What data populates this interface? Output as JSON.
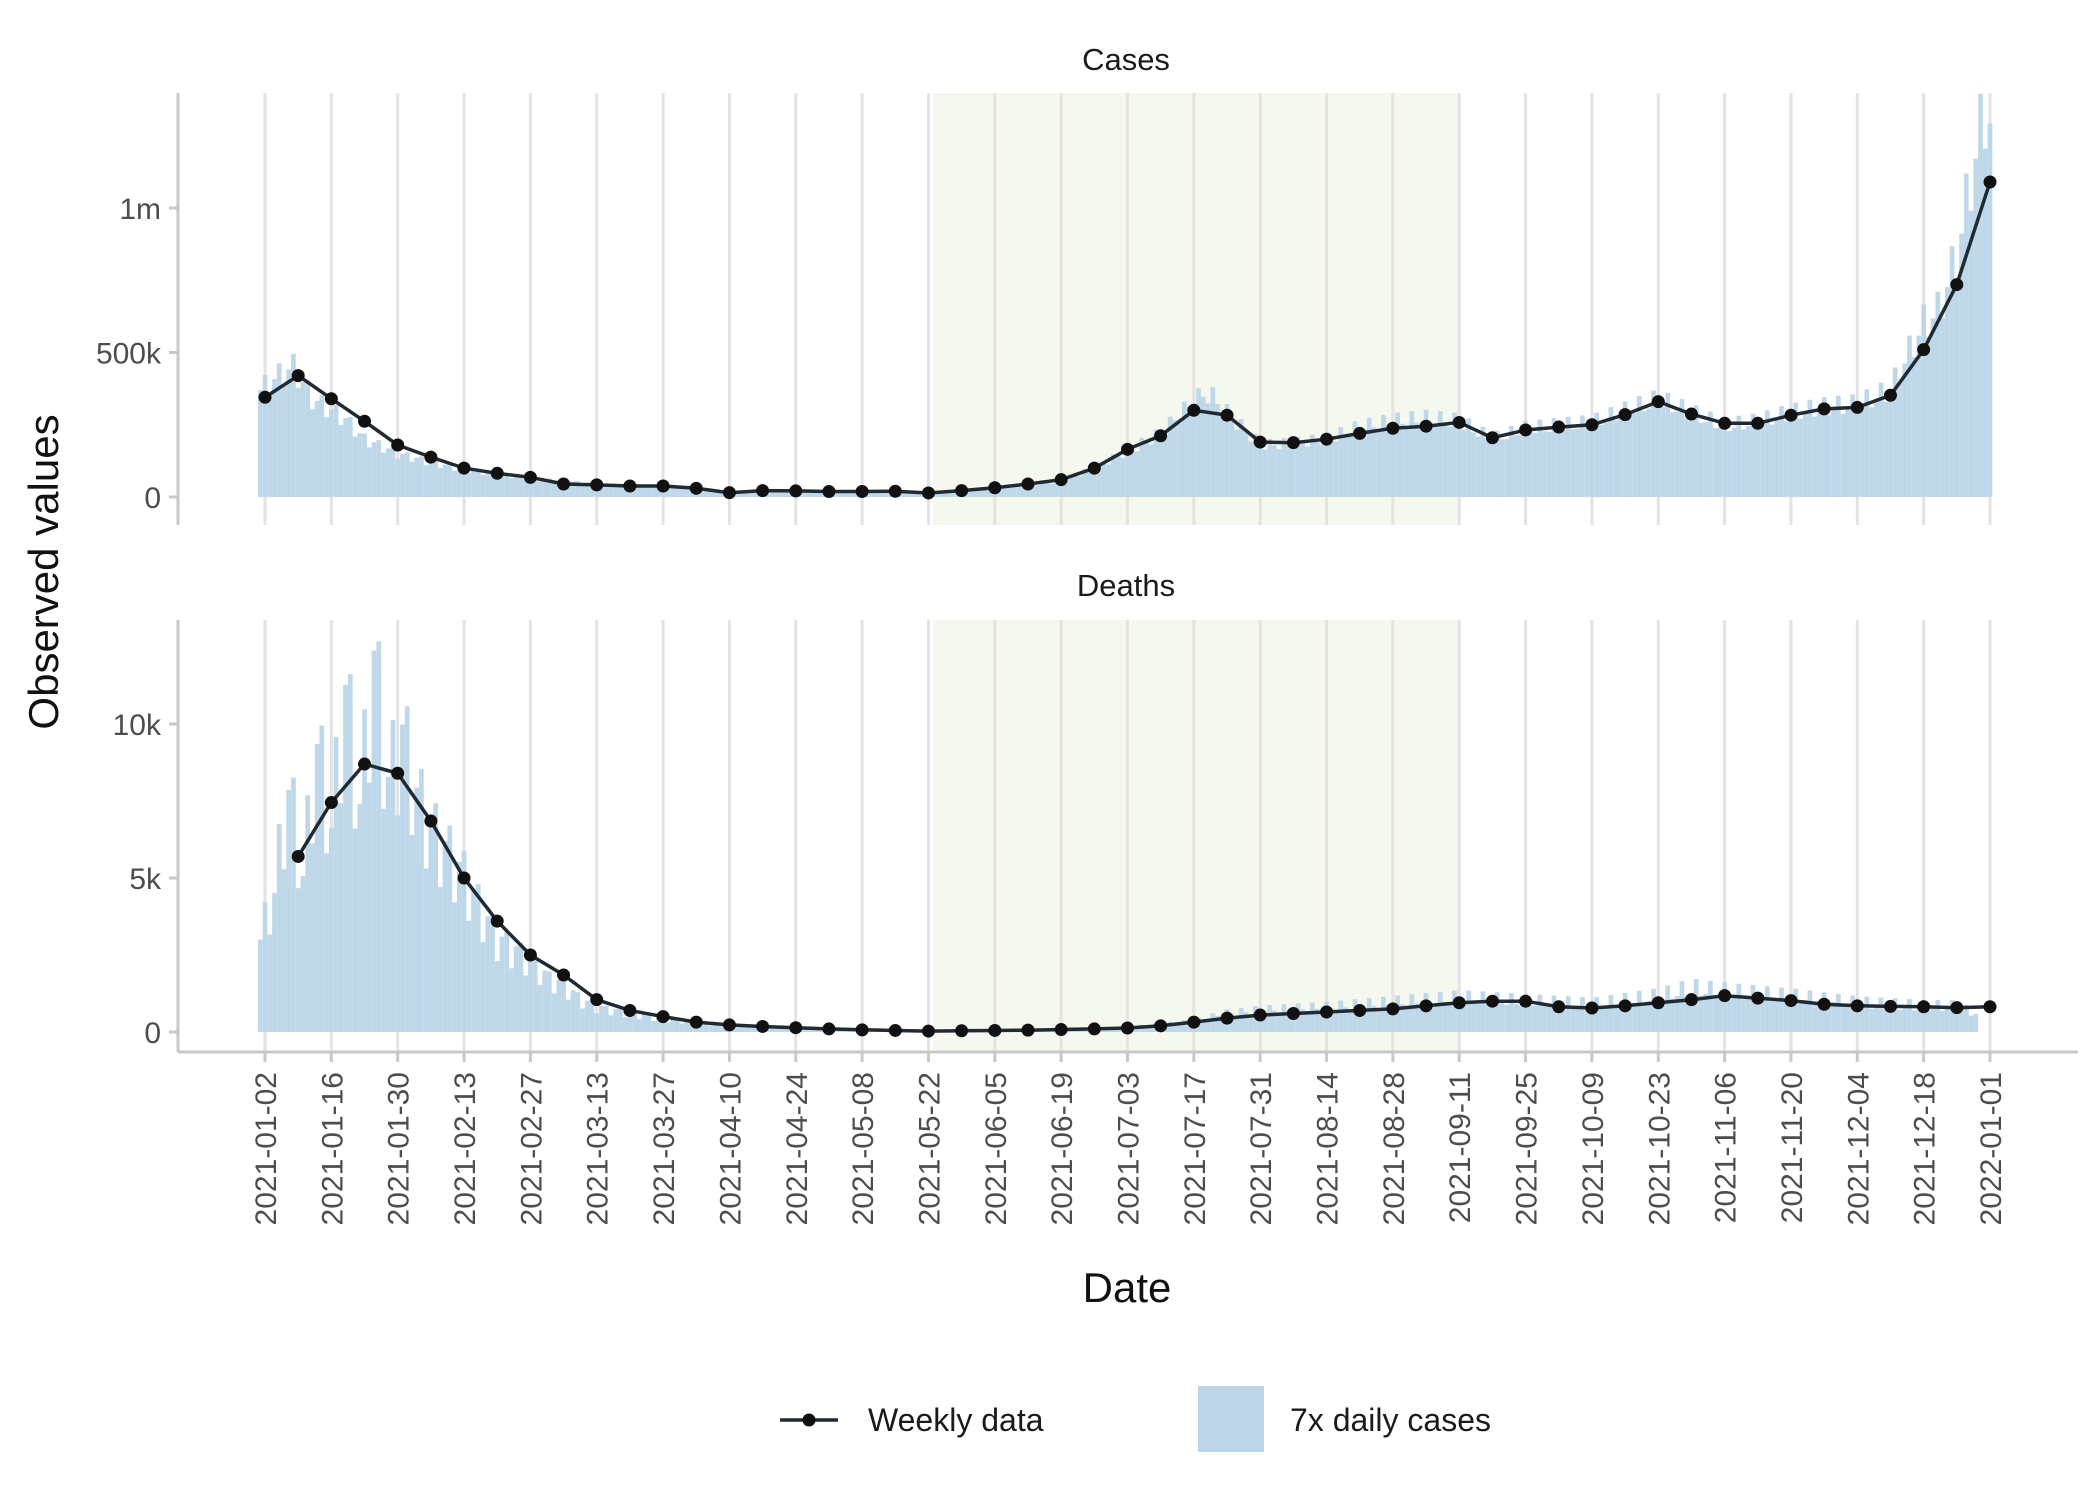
{
  "chart_data": {
    "type": "line",
    "x_axis": {
      "label": "Date",
      "ticks": [
        "2021-01-02",
        "2021-01-16",
        "2021-01-30",
        "2021-02-13",
        "2021-02-27",
        "2021-03-13",
        "2021-03-27",
        "2021-04-10",
        "2021-04-24",
        "2021-05-08",
        "2021-05-22",
        "2021-06-05",
        "2021-06-19",
        "2021-07-03",
        "2021-07-17",
        "2021-07-31",
        "2021-08-14",
        "2021-08-28",
        "2021-09-11",
        "2021-09-25",
        "2021-10-09",
        "2021-10-23",
        "2021-11-06",
        "2021-11-20",
        "2021-12-04",
        "2021-12-18",
        "2022-01-01"
      ]
    },
    "y_axis_label": "Observed values",
    "shaded_period": {
      "start": "2021-05-23",
      "end": "2021-09-11",
      "color": "#f5f8ee"
    },
    "colors": {
      "weekly": "#1f2a33",
      "daily": "#bcd6e8",
      "grid": "#e3e3e3",
      "axis": "#c8c8c8"
    },
    "legend": {
      "position": "bottom",
      "items": [
        {
          "label": "Weekly data",
          "kind": "line-point"
        },
        {
          "label": "7x daily cases",
          "kind": "bar"
        }
      ]
    },
    "panels": [
      {
        "title": "Cases",
        "ylim": [
          0,
          1350000
        ],
        "yticks": [
          {
            "value": 0,
            "label": "0"
          },
          {
            "value": 500000,
            "label": "500k"
          },
          {
            "value": 1000000,
            "label": "1m"
          }
        ],
        "weekly": {
          "start": "2021-01-02",
          "values": [
            345000,
            420000,
            340000,
            262000,
            180000,
            138000,
            100000,
            82000,
            68000,
            45000,
            42000,
            38000,
            38000,
            30000,
            15000,
            22000,
            21000,
            19000,
            19000,
            20000,
            14000,
            22000,
            32000,
            45000,
            60000,
            100000,
            165000,
            212000,
            300000,
            283000,
            190000,
            188000,
            200000,
            220000,
            238000,
            245000,
            258000,
            205000,
            232000,
            242000,
            250000,
            285000,
            330000,
            287000,
            255000,
            255000,
            283000,
            305000,
            310000,
            352000,
            510000,
            735000,
            1090000
          ]
        },
        "daily_anchors": [
          [
            "2021-01-01",
            370000
          ],
          [
            "2021-01-05",
            420000
          ],
          [
            "2021-01-08",
            450000
          ],
          [
            "2021-01-12",
            340000
          ],
          [
            "2021-01-16",
            300000
          ],
          [
            "2021-01-19",
            270000
          ],
          [
            "2021-01-23",
            200000
          ],
          [
            "2021-01-26",
            180000
          ],
          [
            "2021-01-30",
            150000
          ],
          [
            "2021-02-06",
            120000
          ],
          [
            "2021-02-13",
            95000
          ],
          [
            "2021-02-20",
            80000
          ],
          [
            "2021-02-27",
            65000
          ],
          [
            "2021-03-13",
            45000
          ],
          [
            "2021-03-27",
            38000
          ],
          [
            "2021-04-03",
            30000
          ],
          [
            "2021-04-10",
            16000
          ],
          [
            "2021-04-24",
            20000
          ],
          [
            "2021-05-08",
            18000
          ],
          [
            "2021-05-22",
            14000
          ],
          [
            "2021-06-05",
            30000
          ],
          [
            "2021-06-19",
            55000
          ],
          [
            "2021-06-26",
            100000
          ],
          [
            "2021-07-03",
            160000
          ],
          [
            "2021-07-10",
            220000
          ],
          [
            "2021-07-17",
            330000
          ],
          [
            "2021-07-20",
            360000
          ],
          [
            "2021-07-24",
            290000
          ],
          [
            "2021-07-31",
            180000
          ],
          [
            "2021-08-07",
            185000
          ],
          [
            "2021-08-14",
            200000
          ],
          [
            "2021-08-21",
            240000
          ],
          [
            "2021-08-28",
            260000
          ],
          [
            "2021-09-04",
            270000
          ],
          [
            "2021-09-11",
            260000
          ],
          [
            "2021-09-18",
            200000
          ],
          [
            "2021-09-25",
            235000
          ],
          [
            "2021-10-02",
            245000
          ],
          [
            "2021-10-09",
            255000
          ],
          [
            "2021-10-16",
            295000
          ],
          [
            "2021-10-23",
            335000
          ],
          [
            "2021-10-30",
            290000
          ],
          [
            "2021-11-06",
            245000
          ],
          [
            "2021-11-13",
            260000
          ],
          [
            "2021-11-20",
            290000
          ],
          [
            "2021-11-27",
            310000
          ],
          [
            "2021-12-04",
            320000
          ],
          [
            "2021-12-11",
            370000
          ],
          [
            "2021-12-14",
            470000
          ],
          [
            "2021-12-18",
            600000
          ],
          [
            "2021-12-21",
            640000
          ],
          [
            "2021-12-25",
            830000
          ],
          [
            "2021-12-28",
            1100000
          ],
          [
            "2021-12-31",
            1340000
          ],
          [
            "2022-01-01",
            1300000
          ]
        ]
      },
      {
        "title": "Deaths",
        "ylim": [
          0,
          13500
        ],
        "yticks": [
          {
            "value": 0,
            "label": "0"
          },
          {
            "value": 5000,
            "label": "5k"
          },
          {
            "value": 10000,
            "label": "10k"
          }
        ],
        "weekly": {
          "start": "2021-01-09",
          "values": [
            5700,
            7450,
            8700,
            8400,
            6850,
            5000,
            3600,
            2500,
            1850,
            1050,
            700,
            500,
            320,
            230,
            180,
            140,
            100,
            70,
            50,
            30,
            40,
            50,
            60,
            80,
            100,
            130,
            200,
            320,
            450,
            550,
            600,
            650,
            700,
            750,
            850,
            950,
            1000,
            1000,
            820,
            780,
            850,
            950,
            1050,
            1180,
            1100,
            1020,
            900,
            850,
            830,
            820,
            790,
            820
          ]
        },
        "daily_anchors": [
          [
            "2021-01-01",
            3000
          ],
          [
            "2021-01-04",
            4500
          ],
          [
            "2021-01-07",
            7800
          ],
          [
            "2021-01-10",
            5000
          ],
          [
            "2021-01-13",
            9200
          ],
          [
            "2021-01-16",
            6500
          ],
          [
            "2021-01-19",
            11000
          ],
          [
            "2021-01-22",
            7200
          ],
          [
            "2021-01-25",
            12000
          ],
          [
            "2021-01-28",
            8000
          ],
          [
            "2021-01-31",
            9600
          ],
          [
            "2021-02-03",
            7600
          ],
          [
            "2021-02-06",
            6500
          ],
          [
            "2021-02-10",
            5700
          ],
          [
            "2021-02-13",
            5000
          ],
          [
            "2021-02-17",
            3800
          ],
          [
            "2021-02-20",
            3000
          ],
          [
            "2021-02-24",
            2600
          ],
          [
            "2021-02-27",
            2300
          ],
          [
            "2021-03-03",
            1700
          ],
          [
            "2021-03-06",
            1500
          ],
          [
            "2021-03-10",
            1000
          ],
          [
            "2021-03-13",
            800
          ],
          [
            "2021-03-20",
            600
          ],
          [
            "2021-03-27",
            420
          ],
          [
            "2021-04-10",
            220
          ],
          [
            "2021-04-24",
            150
          ],
          [
            "2021-05-08",
            90
          ],
          [
            "2021-05-22",
            60
          ],
          [
            "2021-06-05",
            50
          ],
          [
            "2021-06-19",
            80
          ],
          [
            "2021-07-03",
            150
          ],
          [
            "2021-07-17",
            350
          ],
          [
            "2021-07-24",
            600
          ],
          [
            "2021-07-31",
            700
          ],
          [
            "2021-08-14",
            800
          ],
          [
            "2021-08-28",
            950
          ],
          [
            "2021-09-11",
            1100
          ],
          [
            "2021-09-25",
            1000
          ],
          [
            "2021-10-09",
            900
          ],
          [
            "2021-10-23",
            1150
          ],
          [
            "2021-10-30",
            1400
          ],
          [
            "2021-11-06",
            1300
          ],
          [
            "2021-11-20",
            1150
          ],
          [
            "2021-12-04",
            950
          ],
          [
            "2021-12-18",
            850
          ],
          [
            "2021-12-25",
            850
          ],
          [
            "2021-12-29",
            600
          ]
        ]
      }
    ]
  }
}
